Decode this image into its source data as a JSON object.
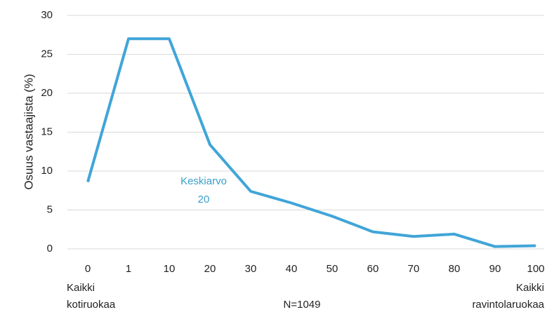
{
  "chart_data": {
    "type": "line",
    "y_label": "Osuus vastaajista (%)",
    "categories": [
      "0",
      "1",
      "10",
      "20",
      "30",
      "40",
      "50",
      "60",
      "70",
      "80",
      "90",
      "100"
    ],
    "series": [
      {
        "name": "Osuus",
        "color": "#41a5d8",
        "values": [
          8.6,
          27,
          27,
          13.4,
          7.4,
          5.9,
          4.2,
          2.2,
          1.6,
          1.9,
          0.3,
          0.4
        ]
      }
    ],
    "ylim": [
      0,
      30
    ],
    "yticks": [
      0,
      5,
      10,
      15,
      20,
      25,
      30
    ],
    "grid": true,
    "annotation": [
      "Keskiarvo",
      "20"
    ],
    "left_note": [
      "Kaikki",
      "kotiruokaa"
    ],
    "center_note": "N=1049",
    "right_note": [
      "Kaikki",
      "ravintolaruokaa"
    ]
  }
}
